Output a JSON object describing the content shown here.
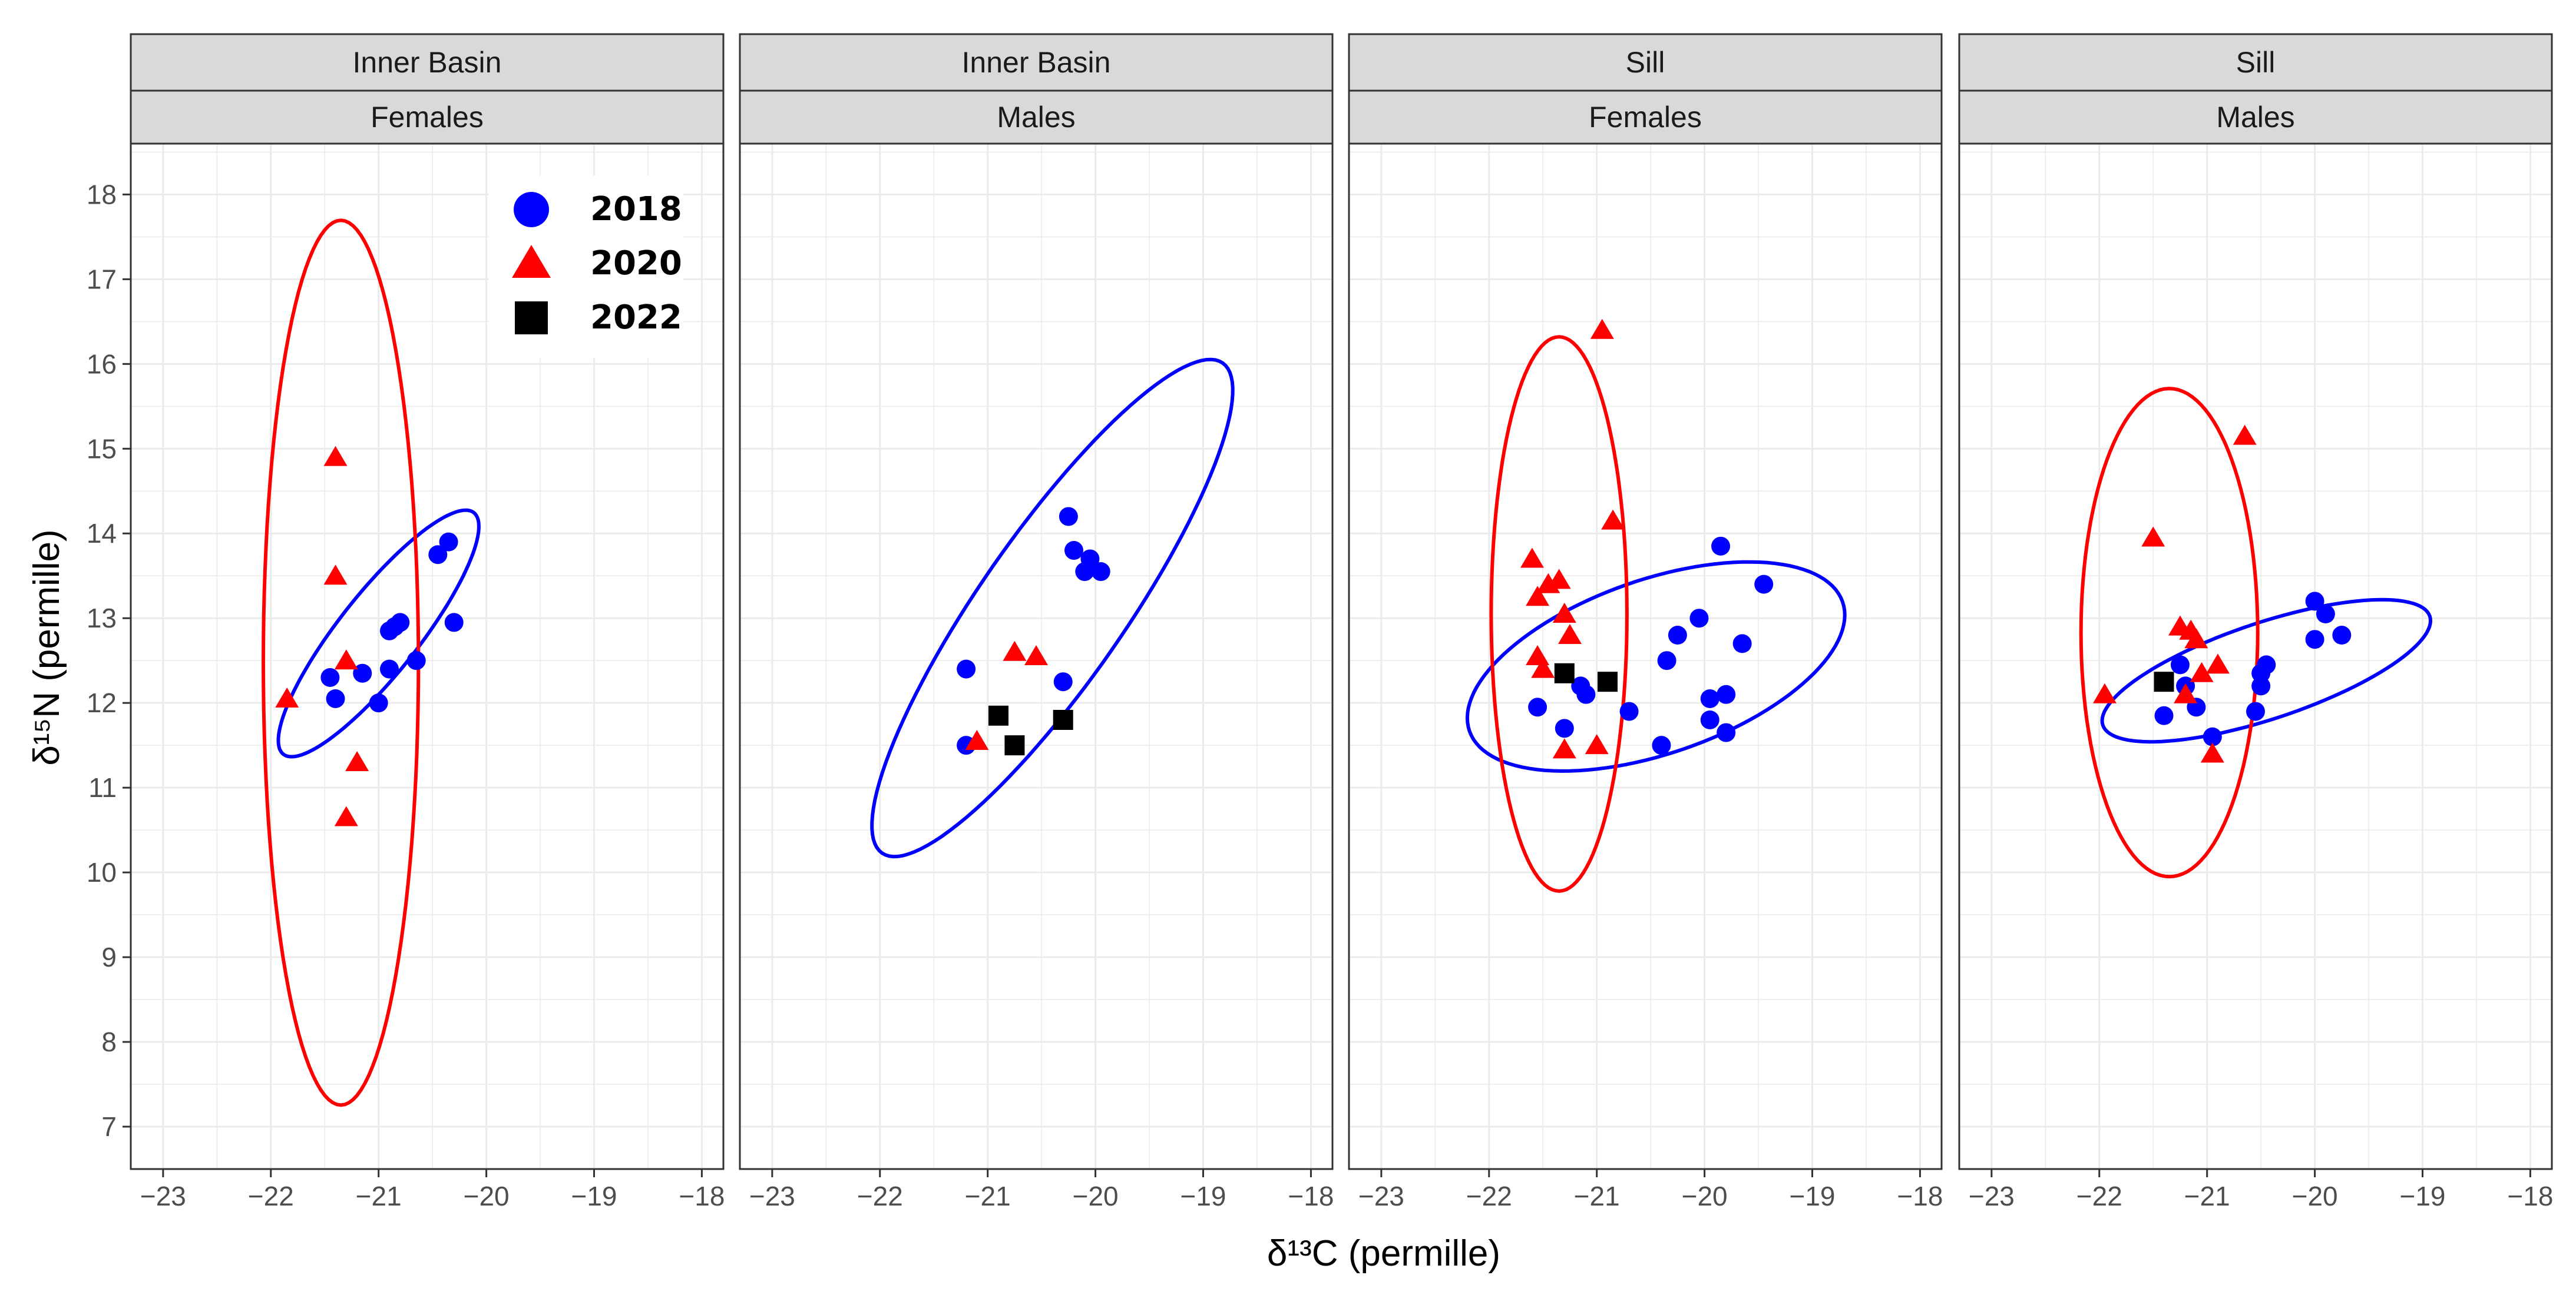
{
  "chart_data": {
    "type": "scatter",
    "xlabel": "δ¹³C (permille)",
    "ylabel": "δ¹⁵N (permille)",
    "xlim": [
      -23.3,
      -17.8
    ],
    "ylim": [
      6.5,
      18.6
    ],
    "x_ticks": [
      -23,
      -22,
      -21,
      -20,
      -19,
      -18
    ],
    "x_tick_labels": [
      "−23",
      "−22",
      "−21",
      "−20",
      "−19",
      "−18"
    ],
    "y_ticks": [
      7,
      8,
      9,
      10,
      11,
      12,
      13,
      14,
      15,
      16,
      17,
      18
    ],
    "y_tick_labels": [
      "7",
      "8",
      "9",
      "10",
      "11",
      "12",
      "13",
      "14",
      "15",
      "16",
      "17",
      "18"
    ],
    "grid": true,
    "legend": {
      "placement": "inside top-right of first panel",
      "entries": [
        {
          "label": "2018",
          "shape": "circle",
          "color": "#0000ff"
        },
        {
          "label": "2020",
          "shape": "triangle",
          "color": "#ff0000"
        },
        {
          "label": "2022",
          "shape": "square",
          "color": "#000000"
        }
      ]
    },
    "colors": {
      "2018": "#0000ff",
      "2020": "#ff0000",
      "2022": "#000000",
      "strip_fill": "#d9d9d9",
      "grid": "#ebebeb"
    },
    "panels": [
      {
        "strip_top": "Inner Basin",
        "strip_bottom": "Females",
        "series": [
          {
            "name": "2018",
            "points": [
              [
                -21.45,
                12.3
              ],
              [
                -21.4,
                12.05
              ],
              [
                -21.15,
                12.35
              ],
              [
                -21.0,
                12.0
              ],
              [
                -20.9,
                12.4
              ],
              [
                -20.9,
                12.85
              ],
              [
                -20.85,
                12.9
              ],
              [
                -20.8,
                12.95
              ],
              [
                -20.65,
                12.5
              ],
              [
                -20.45,
                13.75
              ],
              [
                -20.35,
                13.9
              ],
              [
                -20.3,
                12.95
              ]
            ]
          },
          {
            "name": "2020",
            "points": [
              [
                -21.85,
                12.05
              ],
              [
                -21.4,
                14.9
              ],
              [
                -21.4,
                13.5
              ],
              [
                -21.3,
                12.5
              ],
              [
                -21.3,
                10.65
              ],
              [
                -21.2,
                11.3
              ]
            ]
          },
          {
            "name": "2022",
            "points": []
          }
        ],
        "ellipses": [
          {
            "series": "2018",
            "center": [
              -21.0,
              12.82
            ],
            "semi_axis_major": 1.68,
            "semi_axis_minor": 0.4,
            "angle_deg": 59
          },
          {
            "series": "2020",
            "center": [
              -21.35,
              12.475
            ],
            "semi_axis_major": 5.22,
            "semi_axis_minor": 0.72,
            "angle_deg": 90
          }
        ]
      },
      {
        "strip_top": "Inner Basin",
        "strip_bottom": "Males",
        "series": [
          {
            "name": "2018",
            "points": [
              [
                -21.2,
                12.4
              ],
              [
                -21.2,
                11.5
              ],
              [
                -20.3,
                12.25
              ],
              [
                -20.25,
                14.2
              ],
              [
                -20.2,
                13.8
              ],
              [
                -20.1,
                13.55
              ],
              [
                -20.05,
                13.7
              ],
              [
                -19.95,
                13.55
              ]
            ]
          },
          {
            "name": "2020",
            "points": [
              [
                -21.1,
                11.55
              ],
              [
                -20.75,
                12.6
              ],
              [
                -20.55,
                12.55
              ]
            ]
          },
          {
            "name": "2022",
            "points": [
              [
                -20.9,
                11.85
              ],
              [
                -20.75,
                11.5
              ],
              [
                -20.3,
                11.8
              ]
            ]
          }
        ],
        "ellipses": [
          {
            "series": "2018",
            "center": [
              -20.4,
              13.12
            ],
            "semi_axis_major": 3.3,
            "semi_axis_minor": 0.72,
            "angle_deg": 62
          }
        ]
      },
      {
        "strip_top": "Sill",
        "strip_bottom": "Females",
        "series": [
          {
            "name": "2018",
            "points": [
              [
                -21.55,
                11.95
              ],
              [
                -21.3,
                11.7
              ],
              [
                -21.1,
                12.1
              ],
              [
                -21.15,
                12.2
              ],
              [
                -20.7,
                11.9
              ],
              [
                -20.4,
                11.5
              ],
              [
                -20.35,
                12.5
              ],
              [
                -20.25,
                12.8
              ],
              [
                -20.05,
                13.0
              ],
              [
                -19.95,
                11.8
              ],
              [
                -19.95,
                12.05
              ],
              [
                -19.85,
                13.85
              ],
              [
                -19.8,
                11.65
              ],
              [
                -19.8,
                12.1
              ],
              [
                -19.65,
                12.7
              ],
              [
                -19.45,
                13.4
              ]
            ]
          },
          {
            "name": "2020",
            "points": [
              [
                -21.6,
                13.7
              ],
              [
                -21.55,
                13.25
              ],
              [
                -21.55,
                12.55
              ],
              [
                -21.5,
                12.4
              ],
              [
                -21.45,
                13.4
              ],
              [
                -21.35,
                13.45
              ],
              [
                -21.3,
                13.05
              ],
              [
                -21.3,
                11.45
              ],
              [
                -21.25,
                12.8
              ],
              [
                -21.0,
                11.5
              ],
              [
                -20.95,
                16.4
              ],
              [
                -20.85,
                14.15
              ]
            ]
          },
          {
            "name": "2022",
            "points": [
              [
                -21.3,
                12.35
              ],
              [
                -20.9,
                12.25
              ]
            ]
          }
        ],
        "ellipses": [
          {
            "series": "2018",
            "center": [
              -20.45,
              12.43
            ],
            "semi_axis_major": 1.9,
            "semi_axis_minor": 0.99,
            "angle_deg": 27
          },
          {
            "series": "2020",
            "center": [
              -21.35,
              13.05
            ],
            "semi_axis_major": 3.27,
            "semi_axis_minor": 0.63,
            "angle_deg": 90
          }
        ]
      },
      {
        "strip_top": "Sill",
        "strip_bottom": "Males",
        "series": [
          {
            "name": "2018",
            "points": [
              [
                -21.4,
                11.85
              ],
              [
                -21.25,
                12.45
              ],
              [
                -21.2,
                12.2
              ],
              [
                -21.1,
                11.95
              ],
              [
                -20.95,
                11.6
              ],
              [
                -20.55,
                11.9
              ],
              [
                -20.5,
                12.2
              ],
              [
                -20.5,
                12.35
              ],
              [
                -20.45,
                12.45
              ],
              [
                -20.0,
                13.2
              ],
              [
                -20.0,
                12.75
              ],
              [
                -19.9,
                13.05
              ],
              [
                -19.75,
                12.8
              ]
            ]
          },
          {
            "name": "2020",
            "points": [
              [
                -21.95,
                12.1
              ],
              [
                -21.5,
                13.95
              ],
              [
                -21.25,
                12.9
              ],
              [
                -21.2,
                12.1
              ],
              [
                -21.15,
                12.85
              ],
              [
                -21.1,
                12.75
              ],
              [
                -21.05,
                12.35
              ],
              [
                -20.95,
                11.4
              ],
              [
                -20.9,
                12.45
              ],
              [
                -20.65,
                15.15
              ]
            ]
          },
          {
            "name": "2022",
            "points": [
              [
                -21.4,
                12.25
              ]
            ]
          }
        ],
        "ellipses": [
          {
            "series": "2018",
            "center": [
              -20.45,
              12.38
            ],
            "semi_axis_major": 1.65,
            "semi_axis_minor": 0.55,
            "angle_deg": 24
          },
          {
            "series": "2020",
            "center": [
              -21.35,
              12.83
            ],
            "semi_axis_major": 2.88,
            "semi_axis_minor": 0.82,
            "angle_deg": 90
          }
        ]
      }
    ]
  }
}
